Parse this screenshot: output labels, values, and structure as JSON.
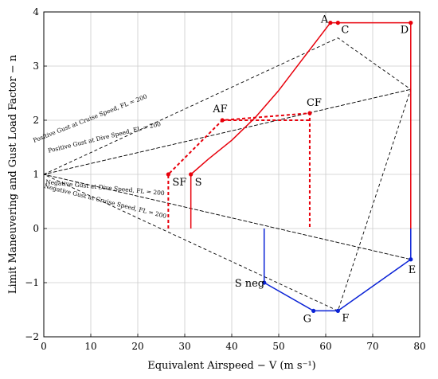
{
  "chart_data": {
    "type": "line",
    "xlabel": "Equivalent Airspeed − V (m s⁻¹)",
    "ylabel": "Limit Maneuvering and Gust Load Factor − n",
    "xlim": [
      0,
      80
    ],
    "ylim": [
      -2,
      4
    ],
    "x_ticks": [
      0,
      10,
      20,
      30,
      40,
      50,
      60,
      70,
      80
    ],
    "y_ticks": [
      -2,
      -1,
      0,
      1,
      2,
      3,
      4
    ],
    "grid": true,
    "colors": {
      "clean_envelope": "#e8000b",
      "flap_envelope": "#e8000b",
      "negative_envelope": "#0a22d6",
      "gust_lines": "#000000",
      "grid": "#cccccc"
    },
    "series": [
      {
        "role": "clean-positive-envelope",
        "style": "solid",
        "x": [
          31.3,
          31.3,
          35,
          40,
          45,
          50,
          55,
          61.0,
          62.6,
          78.1,
          78.1
        ],
        "y": [
          0,
          1.0,
          1.28,
          1.63,
          2.05,
          2.55,
          3.12,
          3.8,
          3.8,
          3.8,
          0
        ]
      },
      {
        "role": "flap-envelope",
        "style": "dashed",
        "x": [
          26.5,
          26.5,
          38.0,
          56.6,
          56.6
        ],
        "y": [
          0,
          1.0,
          2.0,
          2.13,
          0
        ]
      },
      {
        "role": "flap-envelope-segment",
        "style": "dashed",
        "x": [
          38.0,
          56.6
        ],
        "y": [
          2.0,
          2.0
        ]
      },
      {
        "role": "negative-envelope",
        "style": "solid",
        "x": [
          46.9,
          46.9,
          57.4,
          62.6,
          78.1,
          78.1
        ],
        "y": [
          0,
          -1.0,
          -1.52,
          -1.52,
          -0.57,
          0
        ]
      },
      {
        "role": "gust-envelope",
        "style": "dashed",
        "x": [
          0,
          62.6,
          78.1,
          62.6,
          0,
          78.1,
          0,
          78.1,
          0
        ],
        "y": [
          1,
          3.52,
          2.57,
          -1.52,
          1,
          2.57,
          1,
          -0.57,
          1
        ]
      }
    ],
    "points": [
      {
        "label": "A",
        "x": 61.0,
        "y": 3.8,
        "color": "red"
      },
      {
        "label": "C",
        "x": 62.6,
        "y": 3.8,
        "color": "red"
      },
      {
        "label": "D",
        "x": 78.1,
        "y": 3.8,
        "color": "red"
      },
      {
        "label": "AF",
        "x": 38.0,
        "y": 2.0,
        "color": "red"
      },
      {
        "label": "CF",
        "x": 56.6,
        "y": 2.13,
        "color": "red"
      },
      {
        "label": "SF",
        "x": 26.5,
        "y": 1.0,
        "color": "red"
      },
      {
        "label": "S",
        "x": 31.3,
        "y": 1.0,
        "color": "red"
      },
      {
        "label": "E",
        "x": 78.1,
        "y": -0.57,
        "color": "blue"
      },
      {
        "label": "S neg",
        "x": 46.9,
        "y": -1.0,
        "color": "blue"
      },
      {
        "label": "G",
        "x": 57.4,
        "y": -1.52,
        "color": "blue"
      },
      {
        "label": "F",
        "x": 62.6,
        "y": -1.52,
        "color": "blue"
      }
    ],
    "annotations": [
      {
        "text": "Positive Gust at Cruise Speed, FL = 200"
      },
      {
        "text": "Positive Gust at Dive Speed, FL = 200"
      },
      {
        "text": "Negative Gust at Dive Speed, FL = 200"
      },
      {
        "text": "Negative Gust at Cruise Speed, FL = 200"
      }
    ]
  }
}
